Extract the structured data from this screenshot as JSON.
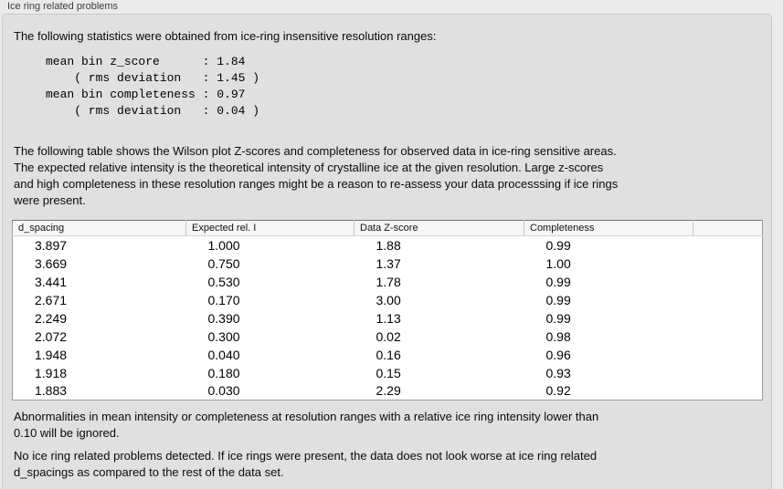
{
  "panel": {
    "title": "Ice ring related problems"
  },
  "intro": "The following statistics were obtained from ice-ring insensitive resolution ranges:",
  "stats_block": "mean bin z_score      : 1.84\n    ( rms deviation   : 1.45 )\nmean bin completeness : 0.97\n    ( rms deviation   : 0.04 )",
  "description": "The following table shows the Wilson plot Z-scores and completeness for observed data in ice-ring sensitive areas.\nThe expected relative intensity is the theoretical intensity of crystalline ice at the given resolution. Large z-scores\nand high completeness in these resolution ranges might be a reason to re-assess your data processsing if ice rings\nwere present.",
  "table": {
    "columns": [
      "d_spacing",
      "Expected rel. I",
      "Data Z-score",
      "Completeness"
    ],
    "rows": [
      [
        "3.897",
        "1.000",
        "1.88",
        "0.99"
      ],
      [
        "3.669",
        "0.750",
        "1.37",
        "1.00"
      ],
      [
        "3.441",
        "0.530",
        "1.78",
        "0.99"
      ],
      [
        "2.671",
        "0.170",
        "3.00",
        "0.99"
      ],
      [
        "2.249",
        "0.390",
        "1.13",
        "0.99"
      ],
      [
        "2.072",
        "0.300",
        "0.02",
        "0.98"
      ],
      [
        "1.948",
        "0.040",
        "0.16",
        "0.96"
      ],
      [
        "1.918",
        "0.180",
        "0.15",
        "0.93"
      ],
      [
        "1.883",
        "0.030",
        "2.29",
        "0.92"
      ]
    ]
  },
  "ignore_note": "Abnormalities in mean intensity or completeness at resolution ranges with a relative ice ring intensity lower than\n0.10 will be ignored.",
  "conclusion": "No ice ring related problems detected. If ice rings were present, the data does not look worse at ice ring related\nd_spacings as compared to the rest of the data set."
}
